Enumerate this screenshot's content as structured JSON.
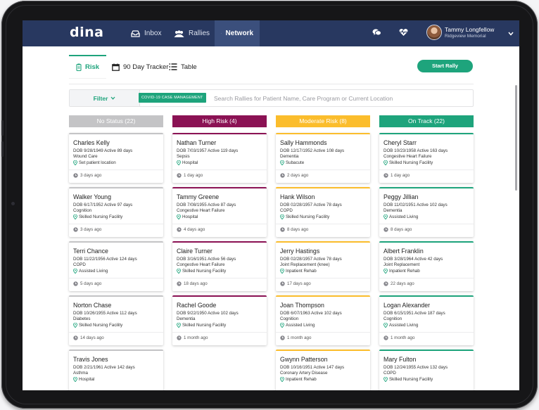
{
  "header": {
    "logo": "dina",
    "nav": [
      {
        "label": "Inbox",
        "icon": "inbox-icon"
      },
      {
        "label": "Rallies",
        "icon": "people-icon"
      },
      {
        "label": "Network",
        "icon": "globe-icon",
        "active": true
      }
    ],
    "user": {
      "name": "Tammy Longfellow",
      "org": "Ridgeview Memorial"
    }
  },
  "tabs": [
    {
      "label": "Risk",
      "icon": "clipboard-icon",
      "active": true
    },
    {
      "label": "90 Day Tracker",
      "icon": "calendar-icon"
    },
    {
      "label": "Table",
      "icon": "list-icon"
    }
  ],
  "start_rally_label": "Start Rally",
  "filter": {
    "label": "Filter",
    "chip": "COVID-19 CASE MANAGEMENT",
    "search_placeholder": "Search Rallies for Patient Name, Care Program or Current Location"
  },
  "colors": {
    "accent": "#1ea47c",
    "header": "#283860",
    "no_status": "#c4c4c6",
    "high_risk": "#8b1254",
    "moderate_risk": "#fbbd2c",
    "on_track": "#1ea47c"
  },
  "columns": [
    {
      "title": "No Status (22)",
      "color": "#c4c4c6",
      "cards": [
        {
          "name": "Charles Kelly",
          "dob": "DOB 9/28/1949  Active 89 days",
          "program": "Wound Care",
          "location": "Set patient location",
          "time": "3 days ago"
        },
        {
          "name": "Walker Young",
          "dob": "DOB 6/17/1952  Active 97 days",
          "program": "Cognition",
          "location": "Skilled Nursing Facility",
          "time": "3 days ago"
        },
        {
          "name": "Terri Chance",
          "dob": "DOB 11/22/1956  Active 124 days",
          "program": "COPD",
          "location": "Assisted Living",
          "time": "5 days ago"
        },
        {
          "name": "Norton Chase",
          "dob": "DOB 10/26/1955  Active 112 days",
          "program": "Diabetes",
          "location": "Skilled Nursing Facility",
          "time": "14 days ago"
        },
        {
          "name": "Travis Jones",
          "dob": "DOB 2/21/1961  Active 142 days",
          "program": "Asthma",
          "location": "Hospital",
          "time": ""
        }
      ]
    },
    {
      "title": "High Risk (4)",
      "color": "#8b1254",
      "cards": [
        {
          "name": "Nathan Turner",
          "dob": "DOB 7/03/1957  Active 119 days",
          "program": "Sepsis",
          "location": "Hospital",
          "time": "1 day ago"
        },
        {
          "name": "Tammy Greene",
          "dob": "DOB 7/08/1955  Active 87 days",
          "program": "Congestive Heart Failure",
          "location": "Hospital",
          "time": "4 days ago"
        },
        {
          "name": "Claire Turner",
          "dob": "DOB 3/16/1951  Active 56 days",
          "program": "Congestive Heart Failure",
          "location": "Skilled Nursing Facility",
          "time": "18 days ago"
        },
        {
          "name": "Rachel Goode",
          "dob": "DOB 9/22/1950  Active 102 days",
          "program": "Dementia",
          "location": "Skilled Nursing Facility",
          "time": "1 month ago"
        }
      ]
    },
    {
      "title": "Moderate Risk (8)",
      "color": "#fbbd2c",
      "cards": [
        {
          "name": "Sally Hammonds",
          "dob": "DOB 12/17/1952  Active 108 days",
          "program": "Dementia",
          "location": "Subacute",
          "time": "2 days ago"
        },
        {
          "name": "Hank Wilson",
          "dob": "DOB 02/28/1957  Active 78 days",
          "program": "COPD",
          "location": "Skilled Nursing Facility",
          "time": "8 days ago"
        },
        {
          "name": "Jerry Hastings",
          "dob": "DOB 02/28/1957  Active 78 days",
          "program": "Joint Replacement (knee)",
          "location": "Inpatient Rehab",
          "time": "17 days ago"
        },
        {
          "name": "Joan Thompson",
          "dob": "DOB 6/07/1963  Active 102 days",
          "program": "Cognition",
          "location": "Assisted Living",
          "time": "1 month ago"
        },
        {
          "name": "Gwynn Patterson",
          "dob": "DOB 10/16/1951  Active 147 days",
          "program": "Coronary Artery Disease",
          "location": "Inpatient Rehab",
          "time": ""
        }
      ]
    },
    {
      "title": "On Track (22)",
      "color": "#1ea47c",
      "cards": [
        {
          "name": "Cheryl Starr",
          "dob": "DOB 10/23/1958  Active 163 days",
          "program": "Congestive Heart Failure",
          "location": "Skilled Nursing Facility",
          "time": "1 day ago"
        },
        {
          "name": "Peggy Jillian",
          "dob": "DOB 11/02/1951  Active 102 days",
          "program": "Dementia",
          "location": "Assisted Living",
          "time": "8 days ago"
        },
        {
          "name": "Albert Franklin",
          "dob": "DOB 3/28/1964  Active 42 days",
          "program": "Joint Replacement",
          "location": "Inpatient Rehab",
          "time": "22 days ago"
        },
        {
          "name": "Logan Alexander",
          "dob": "DOB 6/15/1951  Active 187 days",
          "program": "Cognition",
          "location": "Assisted Living",
          "time": "1 month ago"
        },
        {
          "name": "Mary Fulton",
          "dob": "DOB 12/24/1955  Active 132 days",
          "program": "COPD",
          "location": "Skilled Nursing Facility",
          "time": ""
        }
      ]
    }
  ]
}
